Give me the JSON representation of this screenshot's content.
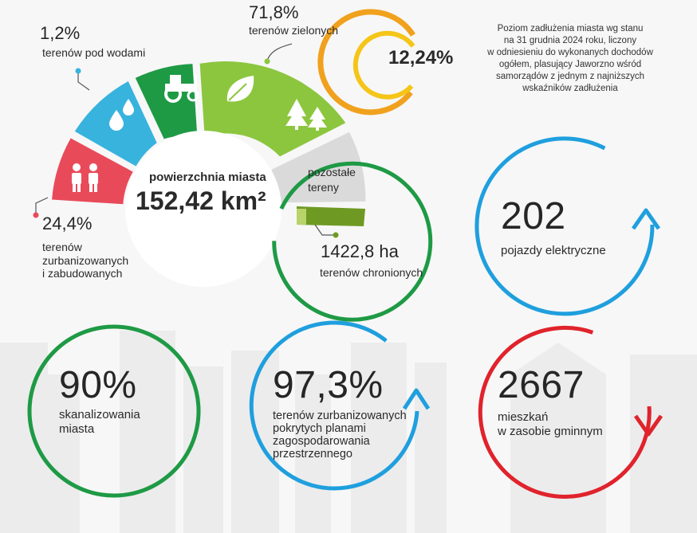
{
  "center": {
    "title": "powierzchnia miasta",
    "value": "152,42 km²"
  },
  "segments": [
    {
      "percent": "24,4%",
      "label_lines": [
        "terenów",
        "zurbanizowanych",
        "i zabudowanych"
      ],
      "color": "#e94a5a",
      "icon": "people-icon"
    },
    {
      "percent": "1,2%",
      "label_lines": [
        "terenów pod wodami"
      ],
      "color": "#37b3de",
      "icon": "water-drops-icon"
    },
    {
      "percent": "71,8%",
      "label_lines": [
        "terenów zielonych"
      ],
      "color": "#8cc63f",
      "icon": "tractor-leaf-trees-icon"
    },
    {
      "label_lines": [
        "pozostałe",
        "tereny"
      ],
      "color": "#dadada"
    },
    {
      "value": "1422,8 ha",
      "label_lines": [
        "terenów chronionych"
      ],
      "color": "#6e9a23"
    }
  ],
  "debt": {
    "value": "12,24%",
    "description_lines": [
      "Poziom zadłużenia miasta wg stanu",
      "na 31 grudnia 2024 roku, liczony",
      "w odniesieniu do wykonanych dochodów",
      "ogółem, plasujący Jaworzno wśród",
      "samorządów z jednym z najniższych",
      "wskaźników zadłużenia"
    ]
  },
  "stats": [
    {
      "value": "202",
      "label_lines": [
        "pojazdy elektryczne"
      ],
      "color": "#1f9fde"
    },
    {
      "value": "90%",
      "label_lines": [
        "skanalizowania",
        "miasta"
      ],
      "color": "#1e9a45"
    },
    {
      "value": "97,3%",
      "label_lines": [
        "terenów zurbanizowanych",
        "pokrytych planami",
        "zagospodarowania",
        "przestrzennego"
      ],
      "color": "#1f9fde"
    },
    {
      "value": "2667",
      "label_lines": [
        "mieszkań",
        "w zasobie gminnym"
      ],
      "color": "#e0232c"
    }
  ],
  "colors": {
    "green_ring": "#1e9a45",
    "debt_orange": "#f0a11d",
    "debt_yellow": "#f5c518",
    "skyline": "#ebebeb"
  }
}
